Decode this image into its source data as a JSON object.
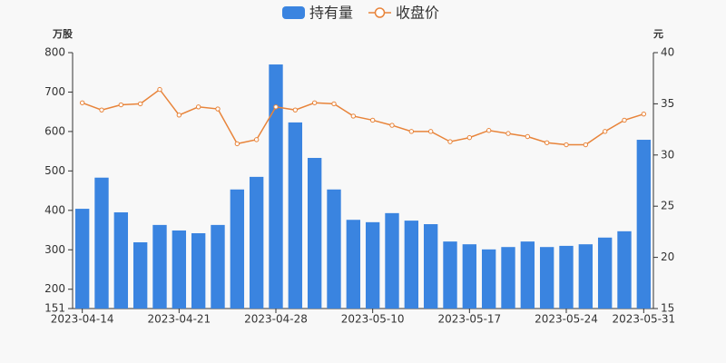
{
  "chart_data": {
    "type": "bar-line",
    "y_label": "万股",
    "y2_label": "元",
    "categories": [
      "2023-04-14",
      null,
      null,
      null,
      null,
      "2023-04-21",
      null,
      null,
      null,
      null,
      "2023-04-28",
      null,
      null,
      null,
      null,
      "2023-05-10",
      null,
      null,
      null,
      null,
      "2023-05-17",
      null,
      null,
      null,
      null,
      "2023-05-24",
      null,
      null,
      null,
      "2023-05-31"
    ],
    "series": [
      {
        "name": "持有量",
        "type": "bar",
        "color": "#3a84e0",
        "values": [
          404,
          483,
          395,
          319,
          363,
          349,
          342,
          363,
          453,
          485,
          770,
          623,
          533,
          453,
          376,
          370,
          393,
          374,
          365,
          321,
          314,
          301,
          307,
          321,
          307,
          310,
          314,
          331,
          347,
          579
        ]
      },
      {
        "name": "收盘价",
        "type": "line",
        "axis": "y2",
        "color": "#e8843a",
        "values": [
          35.1,
          34.4,
          34.9,
          35.0,
          36.4,
          33.9,
          34.7,
          34.5,
          31.1,
          31.5,
          34.7,
          34.4,
          35.1,
          35.0,
          33.8,
          33.4,
          32.9,
          32.3,
          32.3,
          31.3,
          31.7,
          32.4,
          32.1,
          31.8,
          31.2,
          31.0,
          31.0,
          32.3,
          33.4,
          34.0
        ]
      }
    ],
    "ylim": [
      151,
      800
    ],
    "yticks": [
      151,
      200,
      300,
      400,
      500,
      600,
      700,
      800
    ],
    "y2lim": [
      15,
      40
    ],
    "y2ticks": [
      15,
      20,
      25,
      30,
      35,
      40
    ],
    "legend": "top",
    "grid": false
  }
}
